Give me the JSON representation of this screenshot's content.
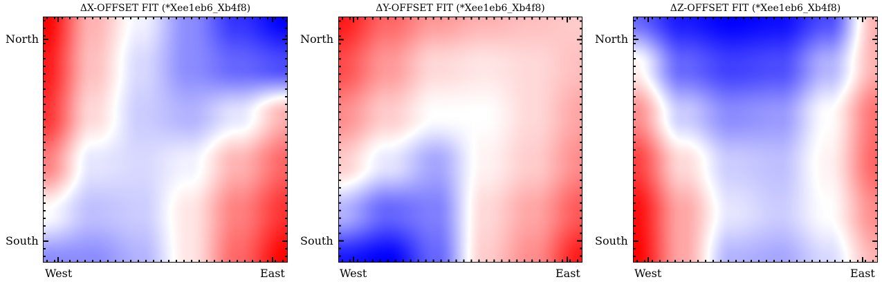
{
  "chart_data": [
    {
      "type": "heatmap",
      "title": "ΔX-OFFSET FIT (*Xee1eb6_Xb4f8)",
      "x_tick_labels": [
        "West",
        "East"
      ],
      "y_tick_labels": [
        "North",
        "South"
      ],
      "colormap": "bwr",
      "colors": {
        "low": "#0000ff",
        "mid": "#ffffff",
        "high": "#ff0000"
      },
      "grid": [
        [
          1.0,
          0.3,
          -0.05,
          -0.45,
          -0.8,
          -1.0
        ],
        [
          0.9,
          0.25,
          -0.15,
          -0.45,
          -0.6,
          -0.7
        ],
        [
          0.8,
          0.15,
          -0.2,
          -0.3,
          -0.1,
          0.3
        ],
        [
          0.5,
          -0.1,
          -0.15,
          -0.05,
          0.3,
          0.6
        ],
        [
          0.0,
          -0.25,
          -0.2,
          0.1,
          0.5,
          0.8
        ],
        [
          -0.45,
          -0.45,
          -0.3,
          0.1,
          0.6,
          1.0
        ]
      ]
    },
    {
      "type": "heatmap",
      "title": "ΔY-OFFSET FIT (*Xee1eb6_Xb4f8)",
      "x_tick_labels": [
        "West",
        "East"
      ],
      "y_tick_labels": [
        "North",
        "South"
      ],
      "colormap": "bwr",
      "colors": {
        "low": "#0000ff",
        "mid": "#ffffff",
        "high": "#ff0000"
      },
      "grid": [
        [
          0.9,
          0.6,
          0.4,
          0.3,
          0.25,
          0.2
        ],
        [
          0.7,
          0.4,
          0.15,
          0.1,
          0.15,
          0.25
        ],
        [
          0.45,
          0.2,
          0.0,
          0.0,
          0.15,
          0.35
        ],
        [
          0.2,
          -0.1,
          -0.35,
          0.05,
          0.2,
          0.45
        ],
        [
          -0.3,
          -0.6,
          -0.5,
          0.15,
          0.35,
          0.65
        ],
        [
          -0.9,
          -1.0,
          -0.6,
          0.2,
          0.45,
          0.9
        ]
      ]
    },
    {
      "type": "heatmap",
      "title": "ΔZ-OFFSET FIT (*Xee1eb6_Xb4f8)",
      "x_tick_labels": [
        "West",
        "East"
      ],
      "y_tick_labels": [
        "North",
        "South"
      ],
      "colormap": "bwr",
      "colors": {
        "low": "#0000ff",
        "mid": "#ffffff",
        "high": "#ff0000"
      },
      "grid": [
        [
          -0.6,
          -0.9,
          -1.0,
          -0.95,
          -0.7,
          0.3
        ],
        [
          0.05,
          -0.6,
          -0.75,
          -0.7,
          -0.3,
          0.3
        ],
        [
          0.45,
          -0.2,
          -0.45,
          -0.4,
          0.0,
          0.55
        ],
        [
          0.75,
          0.15,
          -0.2,
          -0.25,
          0.05,
          0.6
        ],
        [
          0.95,
          0.35,
          -0.1,
          -0.2,
          0.0,
          0.45
        ],
        [
          1.0,
          0.35,
          -0.3,
          -0.35,
          -0.15,
          0.3
        ]
      ]
    }
  ]
}
